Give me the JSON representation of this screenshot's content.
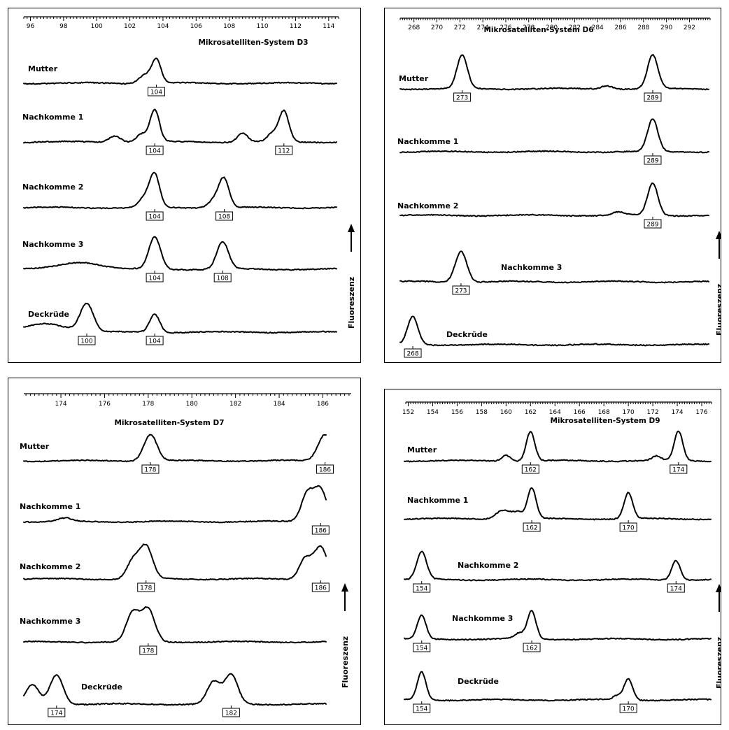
{
  "chart_data": [
    {
      "type": "line",
      "title": "Mikrosatelliten-System D3",
      "xlim": [
        95.6,
        114.6
      ],
      "xticks": [
        96,
        98,
        100,
        102,
        104,
        106,
        108,
        110,
        112,
        114
      ],
      "ylabel": "Fluoreszenz",
      "series": [
        {
          "name": "Mutter",
          "peaks": [
            {
              "x": 102.9,
              "h": 0.35,
              "w": 0.35
            },
            {
              "x": 103.6,
              "h": 1.0,
              "w": 0.28
            }
          ],
          "labels": [
            104
          ]
        },
        {
          "name": "Nachkomme 1",
          "peaks": [
            {
              "x": 101.1,
              "h": 0.2,
              "w": 0.35
            },
            {
              "x": 102.7,
              "h": 0.25,
              "w": 0.3
            },
            {
              "x": 103.5,
              "h": 1.0,
              "w": 0.28
            },
            {
              "x": 108.8,
              "h": 0.28,
              "w": 0.3
            },
            {
              "x": 110.6,
              "h": 0.25,
              "w": 0.3
            },
            {
              "x": 111.3,
              "h": 0.95,
              "w": 0.3
            }
          ],
          "labels": [
            104,
            112
          ]
        },
        {
          "name": "Nachkomme 2",
          "peaks": [
            {
              "x": 102.9,
              "h": 0.3,
              "w": 0.35
            },
            {
              "x": 103.5,
              "h": 1.0,
              "w": 0.3
            },
            {
              "x": 107.2,
              "h": 0.3,
              "w": 0.4
            },
            {
              "x": 107.7,
              "h": 0.8,
              "w": 0.3
            }
          ],
          "labels": [
            104,
            108
          ]
        },
        {
          "name": "Nachkomme 3",
          "peaks": [
            {
              "x": 99.0,
              "h": 0.22,
              "w": 1.2
            },
            {
              "x": 103.5,
              "h": 1.0,
              "w": 0.35
            },
            {
              "x": 107.6,
              "h": 0.85,
              "w": 0.35
            }
          ],
          "labels": [
            104,
            108
          ]
        },
        {
          "name": "Deckrüde",
          "peaks": [
            {
              "x": 97.0,
              "h": 0.3,
              "w": 1.2
            },
            {
              "x": 99.4,
              "h": 1.0,
              "w": 0.4
            },
            {
              "x": 103.5,
              "h": 0.65,
              "w": 0.3
            }
          ],
          "labels": [
            100,
            104
          ]
        }
      ]
    },
    {
      "type": "line",
      "title": "Mikrosatelliten-System D6",
      "xlim": [
        266.8,
        293.8
      ],
      "xticks": [
        268,
        270,
        272,
        274,
        276,
        278,
        280,
        282,
        284,
        286,
        288,
        290,
        292
      ],
      "ylabel": "Fluoreszenz",
      "series": [
        {
          "name": "Mutter",
          "peaks": [
            {
              "x": 272.2,
              "h": 1.0,
              "w": 0.45
            },
            {
              "x": 284.8,
              "h": 0.1,
              "w": 0.5
            },
            {
              "x": 288.8,
              "h": 1.0,
              "w": 0.45
            }
          ],
          "labels": [
            273,
            289
          ]
        },
        {
          "name": "Nachkomme 1",
          "peaks": [
            {
              "x": 288.8,
              "h": 1.0,
              "w": 0.45
            }
          ],
          "labels": [
            289
          ]
        },
        {
          "name": "Nachkomme 2",
          "peaks": [
            {
              "x": 285.8,
              "h": 0.1,
              "w": 0.5
            },
            {
              "x": 288.8,
              "h": 1.0,
              "w": 0.45
            }
          ],
          "labels": [
            289
          ]
        },
        {
          "name": "Nachkomme 3",
          "peaks": [
            {
              "x": 272.1,
              "h": 1.0,
              "w": 0.5
            }
          ],
          "labels": [
            273
          ]
        },
        {
          "name": "Deckrüde",
          "peaks": [
            {
              "x": 267.9,
              "h": 1.0,
              "w": 0.45
            }
          ],
          "labels": [
            268
          ]
        }
      ]
    },
    {
      "type": "line",
      "title": "Mikrosatelliten-System D7",
      "xlim": [
        172.3,
        187.3
      ],
      "xticks": [
        174,
        176,
        178,
        180,
        182,
        184,
        186
      ],
      "ylabel": "Fluoreszenz",
      "series": [
        {
          "name": "Mutter",
          "peaks": [
            {
              "x": 178.1,
              "h": 1.0,
              "w": 0.3
            },
            {
              "x": 186.1,
              "h": 1.0,
              "w": 0.32
            }
          ],
          "labels": [
            178,
            186
          ]
        },
        {
          "name": "Nachkomme 1",
          "peaks": [
            {
              "x": 174.2,
              "h": 0.1,
              "w": 0.3
            },
            {
              "x": 185.3,
              "h": 0.9,
              "w": 0.28
            },
            {
              "x": 185.9,
              "h": 1.0,
              "w": 0.28
            }
          ],
          "labels": [
            186
          ]
        },
        {
          "name": "Nachkomme 2",
          "peaks": [
            {
              "x": 177.3,
              "h": 0.55,
              "w": 0.28
            },
            {
              "x": 177.9,
              "h": 1.0,
              "w": 0.3
            },
            {
              "x": 185.2,
              "h": 0.65,
              "w": 0.28
            },
            {
              "x": 185.9,
              "h": 1.0,
              "w": 0.3
            }
          ],
          "labels": [
            178,
            186
          ]
        },
        {
          "name": "Nachkomme 3",
          "peaks": [
            {
              "x": 177.3,
              "h": 0.9,
              "w": 0.3
            },
            {
              "x": 178.0,
              "h": 1.0,
              "w": 0.3
            }
          ],
          "labels": [
            178
          ]
        },
        {
          "name": "Deckrüde",
          "peaks": [
            {
              "x": 172.7,
              "h": 0.65,
              "w": 0.3
            },
            {
              "x": 173.8,
              "h": 1.0,
              "w": 0.3
            },
            {
              "x": 181.0,
              "h": 0.75,
              "w": 0.3
            },
            {
              "x": 181.8,
              "h": 1.0,
              "w": 0.3
            }
          ],
          "labels": [
            174,
            182
          ]
        }
      ]
    },
    {
      "type": "line",
      "title": "Mikrosatelliten-System D9",
      "xlim": [
        151.8,
        176.8
      ],
      "xticks": [
        152,
        154,
        156,
        158,
        160,
        162,
        164,
        166,
        168,
        170,
        172,
        174,
        176
      ],
      "ylabel": "Fluoreszenz",
      "series": [
        {
          "name": "Mutter",
          "peaks": [
            {
              "x": 160.0,
              "h": 0.2,
              "w": 0.35
            },
            {
              "x": 162.0,
              "h": 1.0,
              "w": 0.35
            },
            {
              "x": 172.3,
              "h": 0.15,
              "w": 0.35
            },
            {
              "x": 174.1,
              "h": 1.0,
              "w": 0.35
            }
          ],
          "labels": [
            162,
            174
          ]
        },
        {
          "name": "Nachkomme 1",
          "peaks": [
            {
              "x": 159.8,
              "h": 0.3,
              "w": 0.6
            },
            {
              "x": 161.0,
              "h": 0.2,
              "w": 0.4
            },
            {
              "x": 162.1,
              "h": 1.0,
              "w": 0.35
            },
            {
              "x": 170.0,
              "h": 0.85,
              "w": 0.35
            }
          ],
          "labels": [
            162,
            170
          ]
        },
        {
          "name": "Nachkomme 2",
          "peaks": [
            {
              "x": 153.1,
              "h": 1.0,
              "w": 0.4
            },
            {
              "x": 173.9,
              "h": 0.7,
              "w": 0.35
            }
          ],
          "labels": [
            154,
            174
          ]
        },
        {
          "name": "Nachkomme 3",
          "peaks": [
            {
              "x": 153.1,
              "h": 0.85,
              "w": 0.35
            },
            {
              "x": 161.1,
              "h": 0.2,
              "w": 0.4
            },
            {
              "x": 162.1,
              "h": 1.0,
              "w": 0.35
            }
          ],
          "labels": [
            154,
            162
          ]
        },
        {
          "name": "Deckrüde",
          "peaks": [
            {
              "x": 153.1,
              "h": 1.0,
              "w": 0.35
            },
            {
              "x": 169.1,
              "h": 0.15,
              "w": 0.35
            },
            {
              "x": 170.0,
              "h": 0.75,
              "w": 0.35
            }
          ],
          "labels": [
            154,
            170
          ]
        }
      ]
    }
  ]
}
